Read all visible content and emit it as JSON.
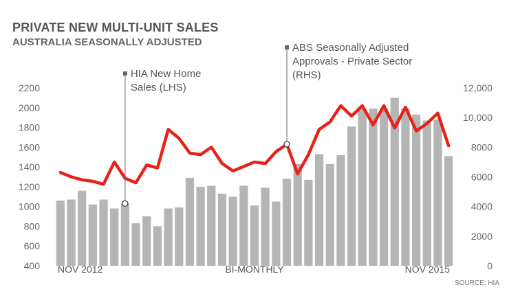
{
  "title": "PRIVATE NEW MULTI-UNIT SALES",
  "subtitle": "AUSTRALIA SEASONALLY ADJUSTED",
  "source": "SOURCE: HIA",
  "colors": {
    "bars": "#b5b5b5",
    "line": "#e8221a",
    "text": "#555555"
  },
  "chart_data": {
    "type": "bar",
    "x_labels": {
      "start": "NOV 2012",
      "middle": "BI-MONTHLY",
      "end": "NOV 2015"
    },
    "y_left": {
      "min": 400,
      "max": 2200,
      "ticks": [
        "2200",
        "2000",
        "1800",
        "1600",
        "1400",
        "1200",
        "1000",
        "800",
        "600",
        "400"
      ]
    },
    "y_right": {
      "min": 0,
      "max": 12000,
      "ticks": [
        "12,000",
        "10,000",
        "8000",
        "6000",
        "4000",
        "2000",
        "0"
      ]
    },
    "series": [
      {
        "name": "HIA New Home Sales (LHS)",
        "axis": "left",
        "type": "bar",
        "values": [
          1060,
          1070,
          1160,
          1020,
          1070,
          980,
          1030,
          830,
          900,
          800,
          980,
          990,
          1290,
          1200,
          1210,
          1130,
          1100,
          1210,
          1010,
          1190,
          1050,
          1280,
          1430,
          1270,
          1530,
          1430,
          1520,
          1810,
          1990,
          1990,
          1990,
          2100,
          1990,
          1930,
          1870,
          1880,
          1510
        ]
      },
      {
        "name": "ABS Seasonally Adjusted Approvals - Private Sector (RHS)",
        "axis": "right",
        "type": "line",
        "values": [
          6300,
          6000,
          5800,
          5700,
          5500,
          7000,
          5900,
          5600,
          6800,
          6600,
          9200,
          8600,
          7600,
          7500,
          8000,
          6900,
          6400,
          6700,
          7000,
          6900,
          7700,
          8200,
          6200,
          7500,
          9200,
          9700,
          10800,
          10100,
          10800,
          9500,
          10800,
          9300,
          10700,
          9100,
          9600,
          10300,
          8100
        ]
      }
    ],
    "annotations": [
      {
        "lines": [
          "HIA New Home",
          "Sales (LHS)"
        ],
        "series_index": 0,
        "point_index": 6
      },
      {
        "lines": [
          "ABS Seasonally Adjusted",
          "Approvals - Private Sector",
          "(RHS)"
        ],
        "series_index": 1,
        "point_index": 21
      }
    ],
    "legend": "none",
    "grid": false
  }
}
